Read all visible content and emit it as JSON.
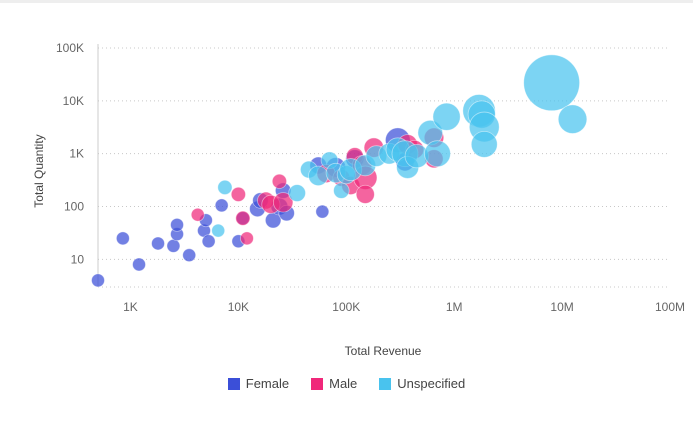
{
  "chart_data": {
    "type": "scatter",
    "title": "",
    "xlabel": "Total Revenue",
    "ylabel": "Total Quantity",
    "x_scale": "log",
    "y_scale": "log",
    "xlim": [
      500,
      100000000
    ],
    "ylim": [
      3,
      100000
    ],
    "x_ticks": [
      {
        "value": 1000,
        "label": "1K"
      },
      {
        "value": 10000,
        "label": "10K"
      },
      {
        "value": 100000,
        "label": "100K"
      },
      {
        "value": 1000000,
        "label": "1M"
      },
      {
        "value": 10000000,
        "label": "10M"
      },
      {
        "value": 100000000,
        "label": "100M"
      }
    ],
    "y_ticks": [
      {
        "value": 10,
        "label": "10"
      },
      {
        "value": 100,
        "label": "100"
      },
      {
        "value": 1000,
        "label": "1K"
      },
      {
        "value": 10000,
        "label": "10K"
      },
      {
        "value": 100000,
        "label": "100K"
      }
    ],
    "grid": "horizontal dotted",
    "legend_position": "bottom",
    "series": [
      {
        "name": "Female",
        "color": "#3b4fd8",
        "points": [
          {
            "x": 500,
            "y": 4,
            "size": 1
          },
          {
            "x": 850,
            "y": 25,
            "size": 1
          },
          {
            "x": 1200,
            "y": 8,
            "size": 1
          },
          {
            "x": 1800,
            "y": 20,
            "size": 1
          },
          {
            "x": 2500,
            "y": 18,
            "size": 1
          },
          {
            "x": 2700,
            "y": 30,
            "size": 1
          },
          {
            "x": 2700,
            "y": 45,
            "size": 1
          },
          {
            "x": 3500,
            "y": 12,
            "size": 1
          },
          {
            "x": 4800,
            "y": 35,
            "size": 1
          },
          {
            "x": 5000,
            "y": 55,
            "size": 1
          },
          {
            "x": 5300,
            "y": 22,
            "size": 1
          },
          {
            "x": 7000,
            "y": 105,
            "size": 1
          },
          {
            "x": 10000,
            "y": 22,
            "size": 1
          },
          {
            "x": 11000,
            "y": 60,
            "size": 1
          },
          {
            "x": 15000,
            "y": 90,
            "size": 1.2
          },
          {
            "x": 16000,
            "y": 130,
            "size": 1.2
          },
          {
            "x": 21000,
            "y": 55,
            "size": 1.2
          },
          {
            "x": 24000,
            "y": 100,
            "size": 1.3
          },
          {
            "x": 26000,
            "y": 200,
            "size": 1.2
          },
          {
            "x": 28000,
            "y": 75,
            "size": 1.2
          },
          {
            "x": 55000,
            "y": 600,
            "size": 1.3
          },
          {
            "x": 60000,
            "y": 80,
            "size": 1
          },
          {
            "x": 80000,
            "y": 550,
            "size": 1.5
          },
          {
            "x": 120000,
            "y": 800,
            "size": 1.4
          },
          {
            "x": 300000,
            "y": 1800,
            "size": 1.9
          },
          {
            "x": 350000,
            "y": 700,
            "size": 1.4
          }
        ]
      },
      {
        "name": "Male",
        "color": "#f0287a",
        "points": [
          {
            "x": 4200,
            "y": 70,
            "size": 1
          },
          {
            "x": 10000,
            "y": 170,
            "size": 1.1
          },
          {
            "x": 11000,
            "y": 60,
            "size": 1.1
          },
          {
            "x": 12000,
            "y": 25,
            "size": 1
          },
          {
            "x": 18000,
            "y": 130,
            "size": 1.3
          },
          {
            "x": 20000,
            "y": 110,
            "size": 1.4
          },
          {
            "x": 24000,
            "y": 300,
            "size": 1.1
          },
          {
            "x": 26000,
            "y": 120,
            "size": 1.5
          },
          {
            "x": 65000,
            "y": 420,
            "size": 1.4
          },
          {
            "x": 90000,
            "y": 350,
            "size": 1.3
          },
          {
            "x": 110000,
            "y": 250,
            "size": 1.4
          },
          {
            "x": 120000,
            "y": 900,
            "size": 1.3
          },
          {
            "x": 140000,
            "y": 600,
            "size": 1.5
          },
          {
            "x": 150000,
            "y": 350,
            "size": 1.8
          },
          {
            "x": 150000,
            "y": 170,
            "size": 1.4
          },
          {
            "x": 180000,
            "y": 1300,
            "size": 1.5
          },
          {
            "x": 370000,
            "y": 1500,
            "size": 1.5
          },
          {
            "x": 430000,
            "y": 1200,
            "size": 1.4
          },
          {
            "x": 650000,
            "y": 2000,
            "size": 1.5
          },
          {
            "x": 650000,
            "y": 800,
            "size": 1.4
          }
        ]
      },
      {
        "name": "Unspecified",
        "color": "#49c3ee",
        "points": [
          {
            "x": 6500,
            "y": 35,
            "size": 1
          },
          {
            "x": 7500,
            "y": 230,
            "size": 1.1
          },
          {
            "x": 35000,
            "y": 180,
            "size": 1.3
          },
          {
            "x": 45000,
            "y": 500,
            "size": 1.3
          },
          {
            "x": 55000,
            "y": 380,
            "size": 1.5
          },
          {
            "x": 70000,
            "y": 750,
            "size": 1.3
          },
          {
            "x": 80000,
            "y": 430,
            "size": 1.5
          },
          {
            "x": 90000,
            "y": 200,
            "size": 1.2
          },
          {
            "x": 100000,
            "y": 400,
            "size": 1.4
          },
          {
            "x": 110000,
            "y": 500,
            "size": 1.7
          },
          {
            "x": 150000,
            "y": 600,
            "size": 1.6
          },
          {
            "x": 190000,
            "y": 900,
            "size": 1.6
          },
          {
            "x": 250000,
            "y": 1000,
            "size": 1.6
          },
          {
            "x": 300000,
            "y": 1200,
            "size": 1.8
          },
          {
            "x": 350000,
            "y": 1000,
            "size": 2.0
          },
          {
            "x": 370000,
            "y": 550,
            "size": 1.7
          },
          {
            "x": 450000,
            "y": 900,
            "size": 1.8
          },
          {
            "x": 600000,
            "y": 2500,
            "size": 1.9
          },
          {
            "x": 700000,
            "y": 1000,
            "size": 2.0
          },
          {
            "x": 850000,
            "y": 5000,
            "size": 2.1
          },
          {
            "x": 1700000,
            "y": 6500,
            "size": 2.5
          },
          {
            "x": 1800000,
            "y": 5500,
            "size": 2.1
          },
          {
            "x": 1900000,
            "y": 3200,
            "size": 2.3
          },
          {
            "x": 1900000,
            "y": 1500,
            "size": 2.0
          },
          {
            "x": 8000000,
            "y": 22000,
            "size": 4.3
          },
          {
            "x": 12500000,
            "y": 4500,
            "size": 2.2
          }
        ]
      }
    ]
  }
}
